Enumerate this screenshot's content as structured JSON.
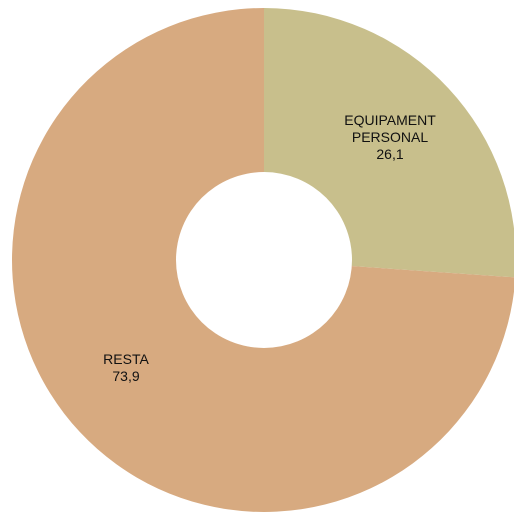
{
  "chart_data": {
    "type": "pie",
    "style": "donut",
    "start_angle_deg": 0,
    "direction": "clockwise",
    "slices": [
      {
        "label_lines": [
          "EQUIPAMENT",
          "PERSONAL"
        ],
        "value": 26.1,
        "value_label": "26,1",
        "color": "#c8bf8c"
      },
      {
        "label_lines": [
          "RESTA"
        ],
        "value": 73.9,
        "value_label": "73,9",
        "color": "#d7aa80"
      }
    ],
    "legend": "none"
  }
}
